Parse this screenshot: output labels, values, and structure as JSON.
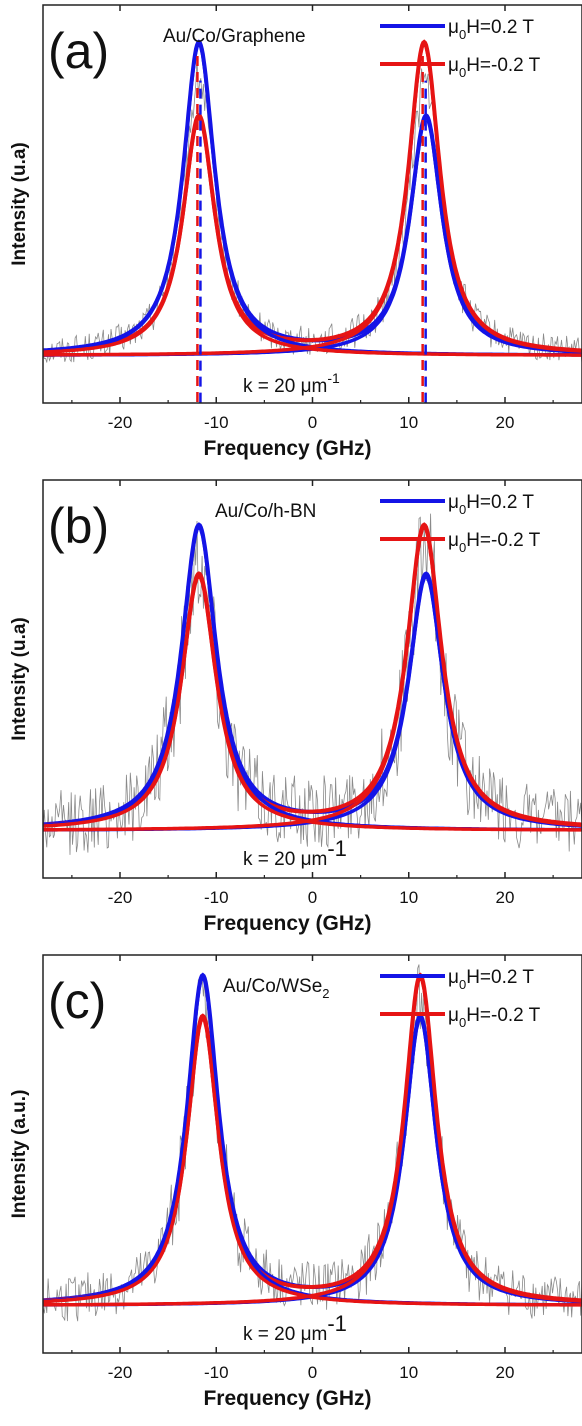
{
  "chart_data": [
    {
      "type": "line",
      "panel_label": "(a)",
      "sample": "Au/Co/Graphene",
      "xlabel": "Frequency (GHz)",
      "ylabel": "Intensity (u.a)",
      "xlim": [
        -28,
        28
      ],
      "x_ticks": [
        "-20",
        "-10",
        "0",
        "10",
        "20"
      ],
      "x_tick_values": [
        -20,
        -10,
        0,
        10,
        20
      ],
      "annotation": {
        "prefix": "k = 20 μm",
        "sup": "-1"
      },
      "dashed_lines": [
        -11.8,
        11.6
      ],
      "baseline": 0.3,
      "noise_amplitude": 0.6,
      "series": [
        {
          "name_main": "μ",
          "name_sub": "0",
          "name_rest": "H=0.2 T",
          "color": "#1414e6",
          "peaks": [
            {
              "center": -11.8,
              "height": 7.6,
              "width": 4.0
            },
            {
              "center": 11.8,
              "height": 5.8,
              "width": 4.0
            }
          ]
        },
        {
          "name_main": "μ",
          "name_sub": "0",
          "name_rest": "H=-0.2 T",
          "color": "#e61414",
          "peaks": [
            {
              "center": -11.8,
              "height": 5.8,
              "width": 4.0
            },
            {
              "center": 11.6,
              "height": 7.6,
              "width": 4.0
            }
          ]
        }
      ]
    },
    {
      "type": "line",
      "panel_label": "(b)",
      "sample": "Au/Co/h-BN",
      "xlabel": "Frequency (GHz)",
      "ylabel": "Intensity (u.a)",
      "xlim": [
        -28,
        28
      ],
      "x_ticks": [
        "-20",
        "-10",
        "0",
        "10",
        "20"
      ],
      "x_tick_values": [
        -20,
        -10,
        0,
        10,
        20
      ],
      "annotation": {
        "prefix": "k = 20 μm",
        "sup": "-1"
      },
      "dashed_lines": [],
      "baseline": 0.3,
      "noise_amplitude": 1.4,
      "series": [
        {
          "name_main": "μ",
          "name_sub": "0",
          "name_rest": "H=0.2 T",
          "color": "#1414e6",
          "peaks": [
            {
              "center": -11.8,
              "height": 7.4,
              "width": 4.4
            },
            {
              "center": 11.8,
              "height": 6.2,
              "width": 4.4
            }
          ]
        },
        {
          "name_main": "μ",
          "name_sub": "0",
          "name_rest": "H=-0.2 T",
          "color": "#e61414",
          "peaks": [
            {
              "center": -11.8,
              "height": 6.2,
              "width": 4.4
            },
            {
              "center": 11.6,
              "height": 7.4,
              "width": 4.4
            }
          ]
        }
      ]
    },
    {
      "type": "line",
      "panel_label": "(c)",
      "sample_main": "Au/Co/WSe",
      "sample_sub": "2",
      "xlabel": "Frequency (GHz)",
      "ylabel": "Intensity (a.u.)",
      "xlim": [
        -28,
        28
      ],
      "x_ticks": [
        "-20",
        "-10",
        "0",
        "10",
        "20"
      ],
      "x_tick_values": [
        -20,
        -10,
        0,
        10,
        20
      ],
      "annotation": {
        "prefix": "k = 20 μm",
        "sup": "-1"
      },
      "dashed_lines": [],
      "baseline": 0.3,
      "noise_amplitude": 1.0,
      "series": [
        {
          "name_main": "μ",
          "name_sub": "0",
          "name_rest": "H=0.2 T",
          "color": "#1414e6",
          "peaks": [
            {
              "center": -11.4,
              "height": 8.0,
              "width": 4.0
            },
            {
              "center": 11.2,
              "height": 7.0,
              "width": 4.0
            }
          ]
        },
        {
          "name_main": "μ",
          "name_sub": "0",
          "name_rest": "H=-0.2 T",
          "color": "#e61414",
          "peaks": [
            {
              "center": -11.4,
              "height": 7.0,
              "width": 4.0
            },
            {
              "center": 11.2,
              "height": 8.0,
              "width": 4.0
            }
          ]
        }
      ]
    }
  ]
}
